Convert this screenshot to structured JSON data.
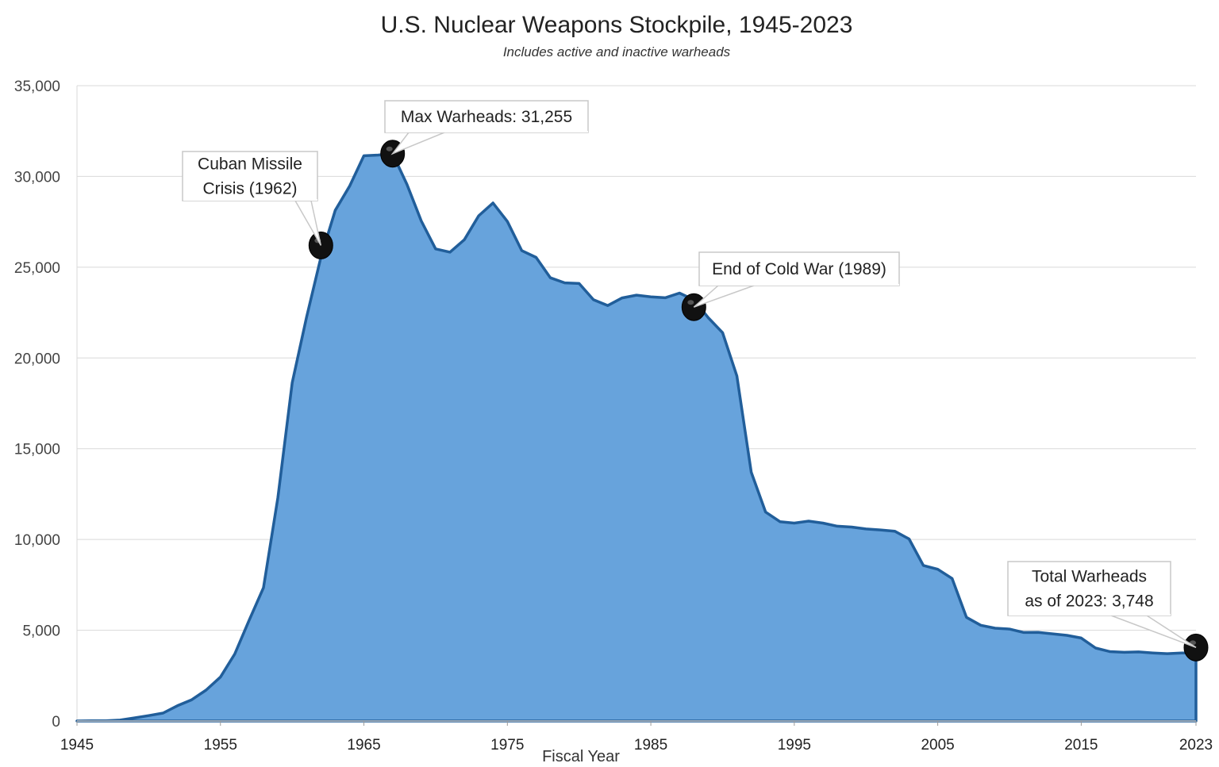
{
  "chart_data": {
    "type": "area",
    "title": "U.S. Nuclear Weapons Stockpile, 1945-2023",
    "subtitle": "Includes active and inactive warheads",
    "xlabel": "Fiscal Year",
    "ylabel": "",
    "xlim": [
      1945,
      2023
    ],
    "ylim": [
      0,
      35000
    ],
    "yticks": [
      0,
      5000,
      10000,
      15000,
      20000,
      25000,
      30000,
      35000
    ],
    "ytick_labels": [
      "0",
      "5,000",
      "10,000",
      "15,000",
      "20,000",
      "25,000",
      "30,000",
      "35,000"
    ],
    "xticks": [
      1945,
      1955,
      1965,
      1975,
      1985,
      1995,
      2005,
      2015,
      2023
    ],
    "xtick_labels": [
      "1945",
      "1955",
      "1965",
      "1975",
      "1985",
      "1995",
      "2005",
      "2015",
      "2023"
    ],
    "grid": true,
    "fill_color": "#67a3dc",
    "line_color": "#215e9a",
    "x": [
      1945,
      1946,
      1947,
      1948,
      1949,
      1950,
      1951,
      1952,
      1953,
      1954,
      1955,
      1956,
      1957,
      1958,
      1959,
      1960,
      1961,
      1962,
      1963,
      1964,
      1965,
      1966,
      1967,
      1968,
      1969,
      1970,
      1971,
      1972,
      1973,
      1974,
      1975,
      1976,
      1977,
      1978,
      1979,
      1980,
      1981,
      1982,
      1983,
      1984,
      1985,
      1986,
      1987,
      1988,
      1989,
      1990,
      1991,
      1992,
      1993,
      1994,
      1995,
      1996,
      1997,
      1998,
      1999,
      2000,
      2001,
      2002,
      2003,
      2004,
      2005,
      2006,
      2007,
      2008,
      2009,
      2010,
      2011,
      2012,
      2013,
      2014,
      2015,
      2016,
      2017,
      2018,
      2019,
      2020,
      2021,
      2022,
      2023
    ],
    "values": [
      2,
      9,
      13,
      50,
      170,
      299,
      438,
      841,
      1169,
      1703,
      2422,
      3692,
      5543,
      7345,
      12298,
      18638,
      22229,
      25540,
      28133,
      29463,
      31139,
      31175,
      31255,
      29561,
      27552,
      26008,
      25830,
      26516,
      27835,
      28537,
      27519,
      25914,
      25542,
      24418,
      24138,
      24104,
      23208,
      22886,
      23305,
      23459,
      23368,
      23317,
      23575,
      23205,
      22217,
      21392,
      19008,
      13708,
      11511,
      10979,
      10904,
      11011,
      10903,
      10732,
      10685,
      10577,
      10526,
      10457,
      10027,
      8570,
      8360,
      7853,
      5709,
      5273,
      5113,
      5066,
      4876,
      4881,
      4804,
      4717,
      4571,
      4018,
      3822,
      3785,
      3805,
      3750,
      3708,
      3750,
      3748
    ],
    "annotations": [
      {
        "year": 1962,
        "value": 26200,
        "text": [
          "Cuban Missile",
          "Crisis (1962)"
        ]
      },
      {
        "year": 1967,
        "value": 31255,
        "text": [
          "Max Warheads:  31,255"
        ]
      },
      {
        "year": 1988,
        "value": 22800,
        "text": [
          "End of Cold War (1989)"
        ]
      },
      {
        "year": 2023,
        "value": 4050,
        "text": [
          "Total Warheads",
          "as of 2023: 3,748"
        ]
      }
    ]
  }
}
